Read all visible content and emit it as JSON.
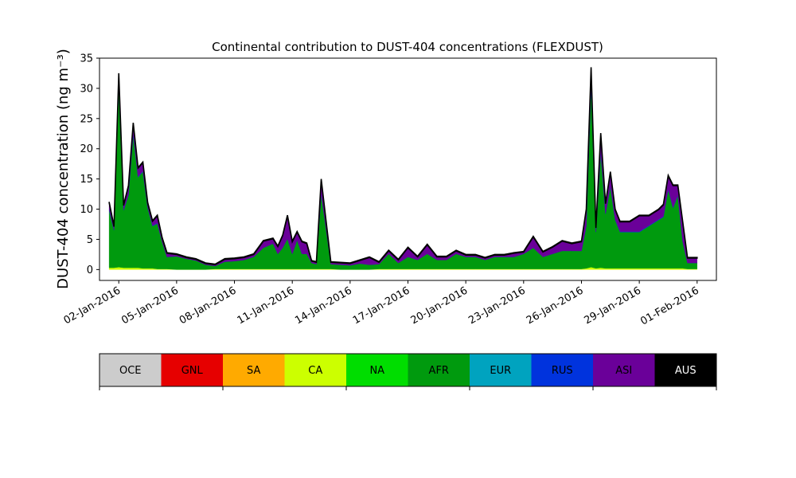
{
  "chart_data": {
    "type": "area",
    "stacked": true,
    "title": "Continental contribution to DUST-404 concentrations (FLEXDUST)",
    "ylabel": "DUST-404 concentration (ng m⁻³)",
    "xlabel": "",
    "ylim": [
      -1.8,
      35
    ],
    "yticks": [
      0,
      5,
      10,
      15,
      20,
      25,
      30,
      35
    ],
    "xlim": [
      "2016-01-01",
      "2016-02-02"
    ],
    "xticks": [
      "02-Jan-2016",
      "05-Jan-2016",
      "08-Jan-2016",
      "11-Jan-2016",
      "14-Jan-2016",
      "17-Jan-2016",
      "20-Jan-2016",
      "23-Jan-2016",
      "26-Jan-2016",
      "29-Jan-2016",
      "01-Feb-2016"
    ],
    "grid": false,
    "x": [
      "2016-01-01T12:00",
      "2016-01-01T18:00",
      "2016-01-02T00:00",
      "2016-01-02T06:00",
      "2016-01-02T12:00",
      "2016-01-02T18:00",
      "2016-01-03T00:00",
      "2016-01-03T06:00",
      "2016-01-03T12:00",
      "2016-01-03T18:00",
      "2016-01-04T00:00",
      "2016-01-04T06:00",
      "2016-01-04T12:00",
      "2016-01-05T00:00",
      "2016-01-05T12:00",
      "2016-01-06T00:00",
      "2016-01-06T12:00",
      "2016-01-07T00:00",
      "2016-01-07T12:00",
      "2016-01-08T00:00",
      "2016-01-08T12:00",
      "2016-01-09T00:00",
      "2016-01-09T12:00",
      "2016-01-10T00:00",
      "2016-01-10T06:00",
      "2016-01-10T12:00",
      "2016-01-10T18:00",
      "2016-01-11T00:00",
      "2016-01-11T06:00",
      "2016-01-11T12:00",
      "2016-01-11T18:00",
      "2016-01-12T00:00",
      "2016-01-12T06:00",
      "2016-01-12T12:00",
      "2016-01-13T00:00",
      "2016-01-13T12:00",
      "2016-01-14T00:00",
      "2016-01-14T12:00",
      "2016-01-15T00:00",
      "2016-01-15T12:00",
      "2016-01-16T00:00",
      "2016-01-16T12:00",
      "2016-01-17T00:00",
      "2016-01-17T12:00",
      "2016-01-18T00:00",
      "2016-01-18T12:00",
      "2016-01-19T00:00",
      "2016-01-19T12:00",
      "2016-01-20T00:00",
      "2016-01-20T12:00",
      "2016-01-21T00:00",
      "2016-01-21T12:00",
      "2016-01-22T00:00",
      "2016-01-22T12:00",
      "2016-01-23T00:00",
      "2016-01-23T12:00",
      "2016-01-24T00:00",
      "2016-01-24T12:00",
      "2016-01-25T00:00",
      "2016-01-25T12:00",
      "2016-01-26T00:00",
      "2016-01-26T06:00",
      "2016-01-26T12:00",
      "2016-01-26T18:00",
      "2016-01-27T00:00",
      "2016-01-27T06:00",
      "2016-01-27T12:00",
      "2016-01-27T18:00",
      "2016-01-28T00:00",
      "2016-01-28T12:00",
      "2016-01-29T00:00",
      "2016-01-29T12:00",
      "2016-01-30T00:00",
      "2016-01-30T06:00",
      "2016-01-30T12:00",
      "2016-01-30T18:00",
      "2016-01-31T00:00",
      "2016-01-31T06:00",
      "2016-01-31T12:00",
      "2016-01-31T18:00",
      "2016-02-01T00:00"
    ],
    "series": [
      {
        "name": "CA",
        "color": "#ccff00",
        "values": [
          0.3,
          0.3,
          0.4,
          0.3,
          0.3,
          0.3,
          0.3,
          0.2,
          0.2,
          0.2,
          0.1,
          0.1,
          0.1,
          0.0,
          0.0,
          0.0,
          0.0,
          0.1,
          0.1,
          0.1,
          0.1,
          0.1,
          0.1,
          0.1,
          0.1,
          0.1,
          0.1,
          0.1,
          0.1,
          0.1,
          0.1,
          0.1,
          0.1,
          0.1,
          0.1,
          0.0,
          0.0,
          0.0,
          0.0,
          0.1,
          0.1,
          0.1,
          0.1,
          0.1,
          0.1,
          0.1,
          0.1,
          0.1,
          0.1,
          0.1,
          0.1,
          0.1,
          0.1,
          0.1,
          0.1,
          0.1,
          0.1,
          0.1,
          0.1,
          0.1,
          0.1,
          0.2,
          0.4,
          0.2,
          0.3,
          0.2,
          0.2,
          0.2,
          0.2,
          0.2,
          0.2,
          0.2,
          0.2,
          0.2,
          0.2,
          0.2,
          0.2,
          0.2,
          0.1,
          0.1,
          0.1
        ]
      },
      {
        "name": "AFR",
        "color": "#009a0e",
        "values": [
          9.5,
          6.2,
          30.0,
          9.5,
          12.0,
          22.0,
          15.0,
          16.0,
          10.0,
          7.0,
          7.5,
          4.5,
          2.0,
          2.2,
          1.8,
          1.5,
          0.8,
          0.5,
          1.2,
          1.3,
          1.5,
          2.0,
          3.5,
          4.2,
          2.5,
          3.5,
          5.0,
          2.5,
          4.8,
          2.5,
          2.5,
          1.0,
          0.8,
          12.5,
          0.8,
          0.8,
          0.7,
          1.0,
          0.8,
          0.8,
          2.5,
          1.0,
          2.0,
          1.5,
          2.5,
          1.5,
          1.5,
          2.5,
          2.0,
          2.0,
          1.5,
          2.0,
          2.0,
          2.0,
          2.5,
          3.5,
          2.0,
          2.5,
          3.0,
          3.0,
          3.0,
          7.0,
          30.0,
          6.0,
          19.0,
          9.0,
          13.5,
          8.0,
          6.0,
          6.0,
          6.0,
          7.0,
          8.0,
          8.5,
          13.0,
          10.0,
          12.0,
          4.5,
          1.0,
          1.0,
          1.0
        ]
      },
      {
        "name": "RUS",
        "color": "#0033dd",
        "values": [
          0.2,
          0.1,
          0.4,
          0.1,
          0.1,
          0.2,
          0.1,
          0.1,
          0.1,
          0.1,
          0.1,
          0.0,
          0.0,
          0.0,
          0.0,
          0.0,
          0.0,
          0.0,
          0.0,
          0.0,
          0.0,
          0.0,
          0.0,
          0.0,
          0.0,
          0.0,
          0.0,
          0.0,
          0.0,
          0.0,
          0.0,
          0.0,
          0.0,
          0.0,
          0.0,
          0.0,
          0.0,
          0.0,
          0.0,
          0.0,
          0.0,
          0.0,
          0.0,
          0.0,
          0.0,
          0.0,
          0.0,
          0.0,
          0.0,
          0.0,
          0.0,
          0.0,
          0.0,
          0.0,
          0.0,
          0.0,
          0.0,
          0.0,
          0.0,
          0.0,
          0.0,
          0.1,
          0.5,
          0.1,
          0.2,
          0.1,
          0.1,
          0.1,
          0.1,
          0.1,
          0.1,
          0.1,
          0.1,
          0.1,
          0.1,
          0.1,
          0.1,
          0.0,
          0.0,
          0.0,
          0.0
        ]
      },
      {
        "name": "ASI",
        "color": "#6a0099",
        "values": [
          1.1,
          0.5,
          1.6,
          0.7,
          1.4,
          1.7,
          1.4,
          1.4,
          0.7,
          0.7,
          1.2,
          0.6,
          0.6,
          0.3,
          0.2,
          0.2,
          0.2,
          0.2,
          0.4,
          0.4,
          0.4,
          0.4,
          1.1,
          0.8,
          1.2,
          2.0,
          3.8,
          2.0,
          1.3,
          2.0,
          1.7,
          0.3,
          0.3,
          2.3,
          0.3,
          0.3,
          0.3,
          0.5,
          1.2,
          0.3,
          0.5,
          0.5,
          1.5,
          0.5,
          1.5,
          0.5,
          0.5,
          0.5,
          0.3,
          0.3,
          0.3,
          0.3,
          0.3,
          0.6,
          0.3,
          1.8,
          0.8,
          1.1,
          1.6,
          1.2,
          1.5,
          2.6,
          2.4,
          0.6,
          3.0,
          1.6,
          2.3,
          1.6,
          1.6,
          1.6,
          2.6,
          1.6,
          1.6,
          1.9,
          2.2,
          3.6,
          1.6,
          3.2,
          0.8,
          0.8,
          0.8
        ]
      },
      {
        "name": "AUS",
        "color": "#000000",
        "values": [
          0.1,
          0.1,
          0.1,
          0.1,
          0.1,
          0.1,
          0.1,
          0.1,
          0.1,
          0.1,
          0.1,
          0.1,
          0.1,
          0.1,
          0.1,
          0.1,
          0.1,
          0.1,
          0.1,
          0.1,
          0.1,
          0.1,
          0.1,
          0.1,
          0.1,
          0.1,
          0.1,
          0.1,
          0.1,
          0.1,
          0.1,
          0.1,
          0.1,
          0.1,
          0.1,
          0.1,
          0.1,
          0.1,
          0.1,
          0.1,
          0.1,
          0.1,
          0.1,
          0.1,
          0.1,
          0.1,
          0.1,
          0.1,
          0.1,
          0.1,
          0.1,
          0.1,
          0.1,
          0.1,
          0.1,
          0.1,
          0.1,
          0.1,
          0.1,
          0.1,
          0.1,
          0.1,
          0.2,
          0.1,
          0.1,
          0.1,
          0.1,
          0.1,
          0.1,
          0.1,
          0.1,
          0.1,
          0.1,
          0.1,
          0.1,
          0.1,
          0.1,
          0.1,
          0.1,
          0.1,
          0.1
        ]
      }
    ],
    "colorbar": {
      "categories": [
        {
          "label": "OCE",
          "color": "#cccccc",
          "text_color": "#000000"
        },
        {
          "label": "GNL",
          "color": "#e60000",
          "text_color": "#000000"
        },
        {
          "label": "SA",
          "color": "#ffaa00",
          "text_color": "#000000"
        },
        {
          "label": "CA",
          "color": "#ccff00",
          "text_color": "#000000"
        },
        {
          "label": "NA",
          "color": "#00dd00",
          "text_color": "#000000"
        },
        {
          "label": "AFR",
          "color": "#009a0e",
          "text_color": "#000000"
        },
        {
          "label": "EUR",
          "color": "#00a3bf",
          "text_color": "#000000"
        },
        {
          "label": "RUS",
          "color": "#0033dd",
          "text_color": "#000000"
        },
        {
          "label": "ASI",
          "color": "#6a0099",
          "text_color": "#000000"
        },
        {
          "label": "AUS",
          "color": "#000000",
          "text_color": "#ffffff"
        }
      ]
    }
  }
}
